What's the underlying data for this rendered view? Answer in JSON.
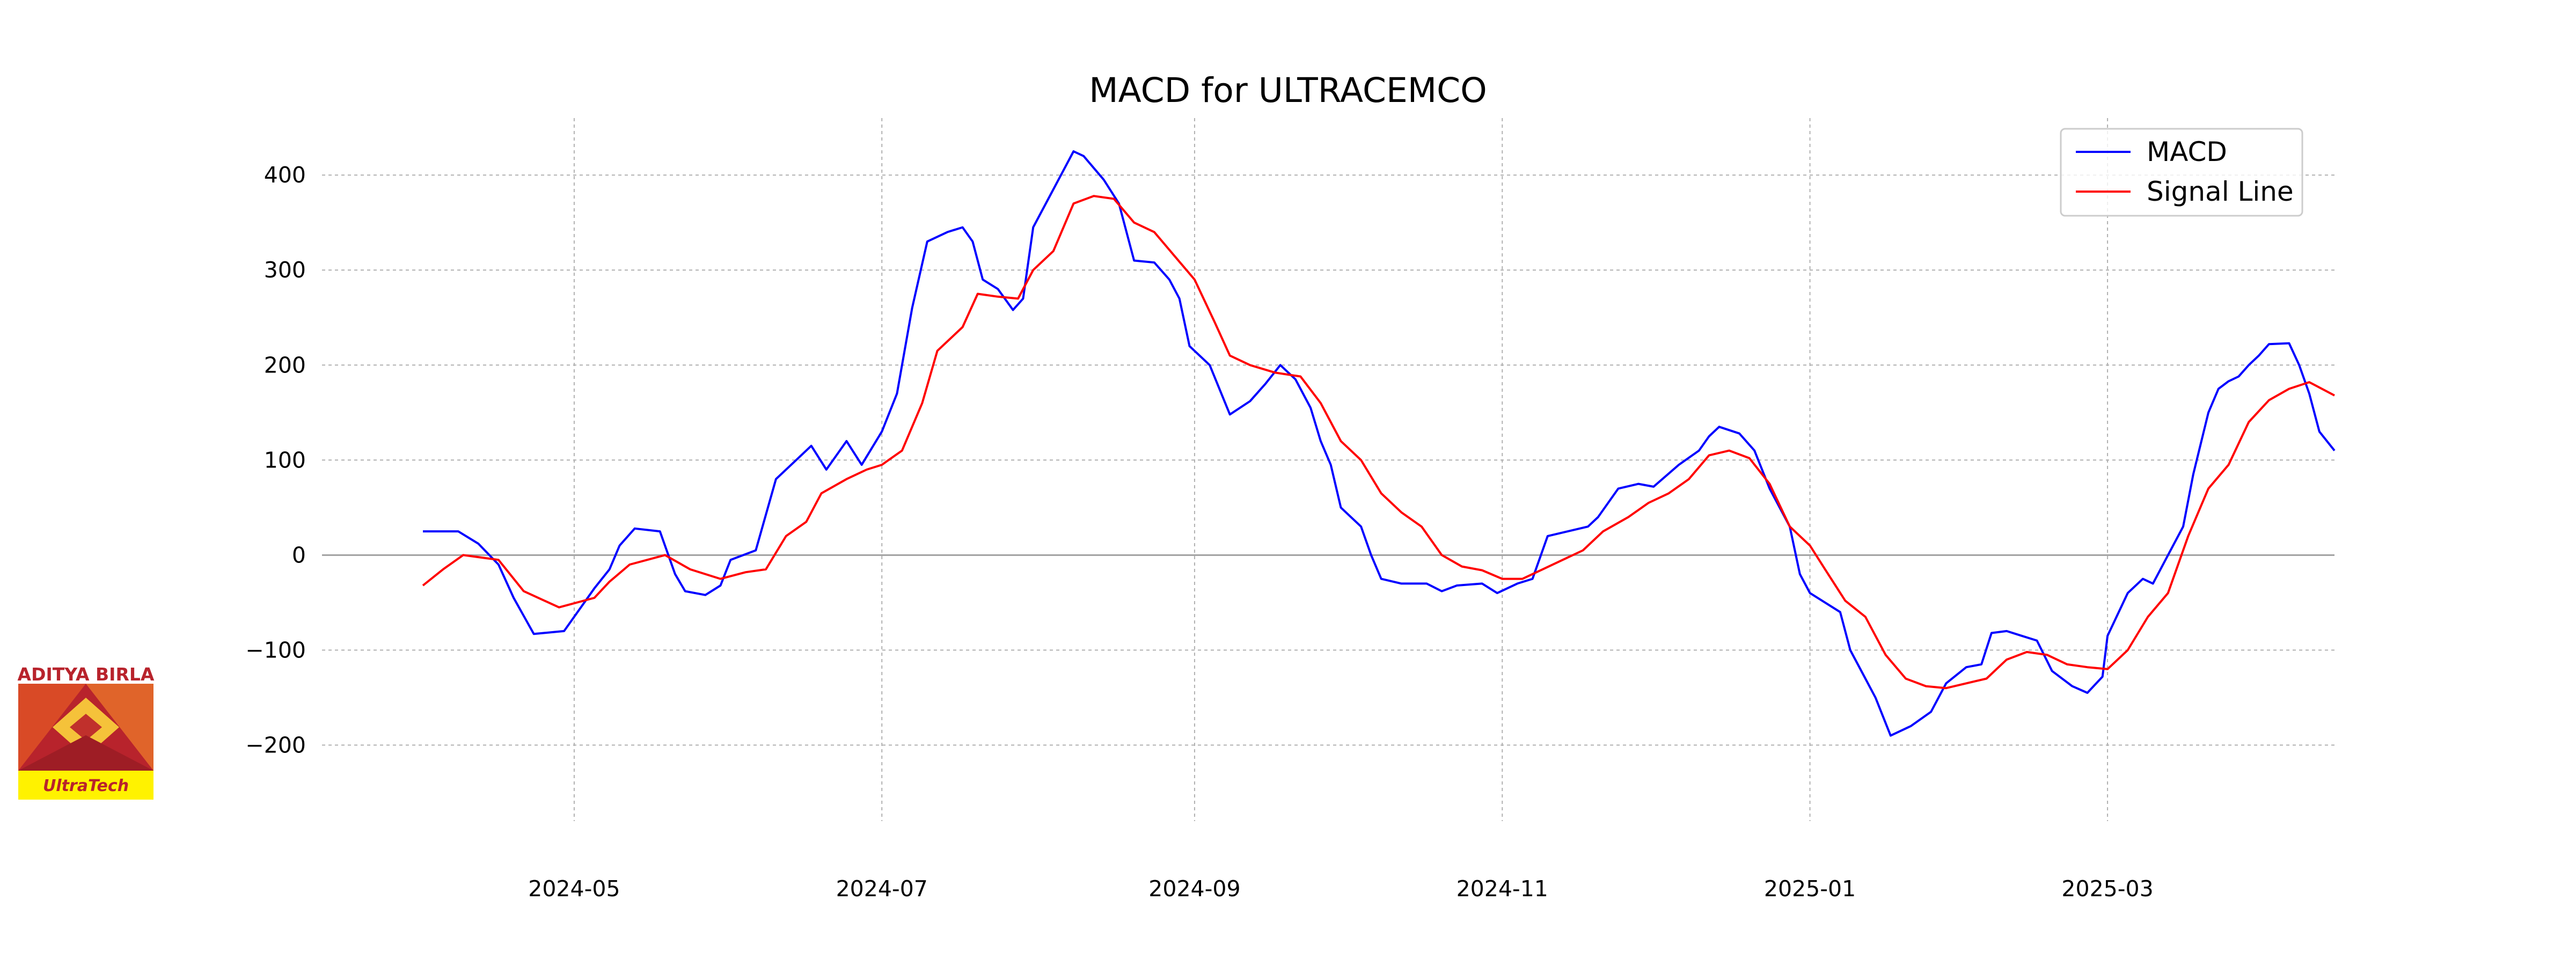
{
  "chart_data": {
    "type": "line",
    "title": "MACD for ULTRACEMCO",
    "xlabel": "",
    "ylabel": "",
    "ylim": [
      -280,
      460
    ],
    "xlim": [
      "2024-03-12",
      "2025-04-15"
    ],
    "grid": true,
    "legend_position": "top-right",
    "x_ticks": [
      "2024-05",
      "2024-07",
      "2024-09",
      "2024-11",
      "2025-01",
      "2025-03"
    ],
    "y_ticks": [
      -200,
      -100,
      0,
      100,
      200,
      300,
      400
    ],
    "series": [
      {
        "name": "MACD",
        "color": "#0000ff",
        "points": [
          [
            "2024-04-01",
            25
          ],
          [
            "2024-04-08",
            25
          ],
          [
            "2024-04-12",
            12
          ],
          [
            "2024-04-16",
            -10
          ],
          [
            "2024-04-19",
            -45
          ],
          [
            "2024-04-23",
            -83
          ],
          [
            "2024-04-29",
            -80
          ],
          [
            "2024-05-05",
            -35
          ],
          [
            "2024-05-08",
            -15
          ],
          [
            "2024-05-10",
            10
          ],
          [
            "2024-05-13",
            28
          ],
          [
            "2024-05-18",
            25
          ],
          [
            "2024-05-21",
            -20
          ],
          [
            "2024-05-23",
            -38
          ],
          [
            "2024-05-27",
            -42
          ],
          [
            "2024-05-30",
            -32
          ],
          [
            "2024-06-01",
            -5
          ],
          [
            "2024-06-06",
            5
          ],
          [
            "2024-06-10",
            80
          ],
          [
            "2024-06-14",
            100
          ],
          [
            "2024-06-17",
            115
          ],
          [
            "2024-06-20",
            90
          ],
          [
            "2024-06-24",
            120
          ],
          [
            "2024-06-27",
            95
          ],
          [
            "2024-07-01",
            130
          ],
          [
            "2024-07-04",
            170
          ],
          [
            "2024-07-07",
            260
          ],
          [
            "2024-07-10",
            330
          ],
          [
            "2024-07-14",
            340
          ],
          [
            "2024-07-17",
            345
          ],
          [
            "2024-07-19",
            330
          ],
          [
            "2024-07-21",
            290
          ],
          [
            "2024-07-24",
            280
          ],
          [
            "2024-07-27",
            258
          ],
          [
            "2024-07-29",
            270
          ],
          [
            "2024-07-31",
            345
          ],
          [
            "2024-08-03",
            375
          ],
          [
            "2024-08-06",
            405
          ],
          [
            "2024-08-08",
            425
          ],
          [
            "2024-08-10",
            420
          ],
          [
            "2024-08-14",
            395
          ],
          [
            "2024-08-17",
            370
          ],
          [
            "2024-08-20",
            310
          ],
          [
            "2024-08-24",
            308
          ],
          [
            "2024-08-27",
            290
          ],
          [
            "2024-08-29",
            270
          ],
          [
            "2024-08-31",
            220
          ],
          [
            "2024-09-04",
            200
          ],
          [
            "2024-09-08",
            148
          ],
          [
            "2024-09-12",
            162
          ],
          [
            "2024-09-15",
            180
          ],
          [
            "2024-09-18",
            200
          ],
          [
            "2024-09-21",
            185
          ],
          [
            "2024-09-24",
            155
          ],
          [
            "2024-09-26",
            120
          ],
          [
            "2024-09-28",
            95
          ],
          [
            "2024-09-30",
            50
          ],
          [
            "2024-10-04",
            30
          ],
          [
            "2024-10-06",
            0
          ],
          [
            "2024-10-08",
            -25
          ],
          [
            "2024-10-12",
            -30
          ],
          [
            "2024-10-17",
            -30
          ],
          [
            "2024-10-20",
            -38
          ],
          [
            "2024-10-23",
            -32
          ],
          [
            "2024-10-28",
            -30
          ],
          [
            "2024-10-31",
            -40
          ],
          [
            "2024-11-04",
            -30
          ],
          [
            "2024-11-07",
            -25
          ],
          [
            "2024-11-10",
            20
          ],
          [
            "2024-11-14",
            25
          ],
          [
            "2024-11-18",
            30
          ],
          [
            "2024-11-20",
            40
          ],
          [
            "2024-11-24",
            70
          ],
          [
            "2024-11-28",
            75
          ],
          [
            "2024-12-01",
            72
          ],
          [
            "2024-12-06",
            95
          ],
          [
            "2024-12-10",
            110
          ],
          [
            "2024-12-12",
            125
          ],
          [
            "2024-12-14",
            135
          ],
          [
            "2024-12-18",
            128
          ],
          [
            "2024-12-21",
            110
          ],
          [
            "2024-12-24",
            70
          ],
          [
            "2024-12-28",
            30
          ],
          [
            "2024-12-30",
            -20
          ],
          [
            "2025-01-01",
            -40
          ],
          [
            "2025-01-04",
            -50
          ],
          [
            "2025-01-07",
            -60
          ],
          [
            "2025-01-09",
            -100
          ],
          [
            "2025-01-12",
            -130
          ],
          [
            "2025-01-14",
            -150
          ],
          [
            "2025-01-17",
            -190
          ],
          [
            "2025-01-21",
            -180
          ],
          [
            "2025-01-25",
            -165
          ],
          [
            "2025-01-28",
            -135
          ],
          [
            "2025-02-01",
            -118
          ],
          [
            "2025-02-04",
            -115
          ],
          [
            "2025-02-06",
            -82
          ],
          [
            "2025-02-09",
            -80
          ],
          [
            "2025-02-12",
            -85
          ],
          [
            "2025-02-15",
            -90
          ],
          [
            "2025-02-18",
            -122
          ],
          [
            "2025-02-22",
            -138
          ],
          [
            "2025-02-25",
            -145
          ],
          [
            "2025-02-28",
            -128
          ],
          [
            "2025-03-01",
            -85
          ],
          [
            "2025-03-05",
            -40
          ],
          [
            "2025-03-08",
            -25
          ],
          [
            "2025-03-10",
            -30
          ],
          [
            "2025-03-13",
            0
          ],
          [
            "2025-03-16",
            30
          ],
          [
            "2025-03-18",
            85
          ],
          [
            "2025-03-21",
            150
          ],
          [
            "2025-03-23",
            175
          ],
          [
            "2025-03-25",
            183
          ],
          [
            "2025-03-27",
            188
          ],
          [
            "2025-03-29",
            200
          ],
          [
            "2025-03-31",
            210
          ],
          [
            "2025-04-02",
            222
          ],
          [
            "2025-04-06",
            223
          ],
          [
            "2025-04-08",
            200
          ],
          [
            "2025-04-10",
            170
          ],
          [
            "2025-04-12",
            130
          ],
          [
            "2025-04-15",
            110
          ]
        ]
      },
      {
        "name": "Signal Line",
        "color": "#ff0000",
        "points": [
          [
            "2024-04-01",
            -32
          ],
          [
            "2024-04-05",
            -15
          ],
          [
            "2024-04-09",
            0
          ],
          [
            "2024-04-16",
            -5
          ],
          [
            "2024-04-21",
            -38
          ],
          [
            "2024-04-28",
            -55
          ],
          [
            "2024-05-05",
            -45
          ],
          [
            "2024-05-08",
            -28
          ],
          [
            "2024-05-12",
            -10
          ],
          [
            "2024-05-19",
            0
          ],
          [
            "2024-05-24",
            -15
          ],
          [
            "2024-05-30",
            -25
          ],
          [
            "2024-06-04",
            -18
          ],
          [
            "2024-06-08",
            -15
          ],
          [
            "2024-06-12",
            20
          ],
          [
            "2024-06-16",
            35
          ],
          [
            "2024-06-19",
            65
          ],
          [
            "2024-06-24",
            80
          ],
          [
            "2024-06-28",
            90
          ],
          [
            "2024-07-01",
            95
          ],
          [
            "2024-07-05",
            110
          ],
          [
            "2024-07-09",
            160
          ],
          [
            "2024-07-12",
            215
          ],
          [
            "2024-07-17",
            240
          ],
          [
            "2024-07-20",
            275
          ],
          [
            "2024-07-24",
            272
          ],
          [
            "2024-07-28",
            270
          ],
          [
            "2024-07-31",
            300
          ],
          [
            "2024-08-04",
            320
          ],
          [
            "2024-08-08",
            370
          ],
          [
            "2024-08-12",
            378
          ],
          [
            "2024-08-16",
            375
          ],
          [
            "2024-08-20",
            350
          ],
          [
            "2024-08-24",
            340
          ],
          [
            "2024-08-28",
            315
          ],
          [
            "2024-09-01",
            290
          ],
          [
            "2024-09-05",
            245
          ],
          [
            "2024-09-08",
            210
          ],
          [
            "2024-09-12",
            200
          ],
          [
            "2024-09-17",
            192
          ],
          [
            "2024-09-22",
            188
          ],
          [
            "2024-09-26",
            160
          ],
          [
            "2024-09-30",
            120
          ],
          [
            "2024-10-04",
            100
          ],
          [
            "2024-10-08",
            65
          ],
          [
            "2024-10-12",
            45
          ],
          [
            "2024-10-16",
            30
          ],
          [
            "2024-10-20",
            0
          ],
          [
            "2024-10-24",
            -12
          ],
          [
            "2024-10-28",
            -16
          ],
          [
            "2024-11-01",
            -25
          ],
          [
            "2024-11-05",
            -25
          ],
          [
            "2024-11-09",
            -15
          ],
          [
            "2024-11-13",
            -5
          ],
          [
            "2024-11-17",
            5
          ],
          [
            "2024-11-21",
            25
          ],
          [
            "2024-11-26",
            40
          ],
          [
            "2024-11-30",
            55
          ],
          [
            "2024-12-04",
            65
          ],
          [
            "2024-12-08",
            80
          ],
          [
            "2024-12-12",
            105
          ],
          [
            "2024-12-16",
            110
          ],
          [
            "2024-12-20",
            102
          ],
          [
            "2024-12-24",
            75
          ],
          [
            "2024-12-28",
            30
          ],
          [
            "2025-01-01",
            10
          ],
          [
            "2025-01-04",
            -15
          ],
          [
            "2025-01-08",
            -48
          ],
          [
            "2025-01-12",
            -65
          ],
          [
            "2025-01-16",
            -105
          ],
          [
            "2025-01-20",
            -130
          ],
          [
            "2025-01-24",
            -138
          ],
          [
            "2025-01-28",
            -140
          ],
          [
            "2025-02-01",
            -135
          ],
          [
            "2025-02-05",
            -130
          ],
          [
            "2025-02-09",
            -110
          ],
          [
            "2025-02-13",
            -102
          ],
          [
            "2025-02-17",
            -105
          ],
          [
            "2025-02-21",
            -115
          ],
          [
            "2025-02-25",
            -118
          ],
          [
            "2025-03-01",
            -120
          ],
          [
            "2025-03-05",
            -100
          ],
          [
            "2025-03-09",
            -65
          ],
          [
            "2025-03-13",
            -40
          ],
          [
            "2025-03-17",
            20
          ],
          [
            "2025-03-21",
            70
          ],
          [
            "2025-03-25",
            95
          ],
          [
            "2025-03-29",
            140
          ],
          [
            "2025-04-02",
            163
          ],
          [
            "2025-04-06",
            175
          ],
          [
            "2025-04-10",
            182
          ],
          [
            "2025-04-15",
            168
          ]
        ]
      }
    ]
  },
  "logo": {
    "top_text": "ADITYA BIRLA",
    "bottom_text": "UltraTech"
  }
}
